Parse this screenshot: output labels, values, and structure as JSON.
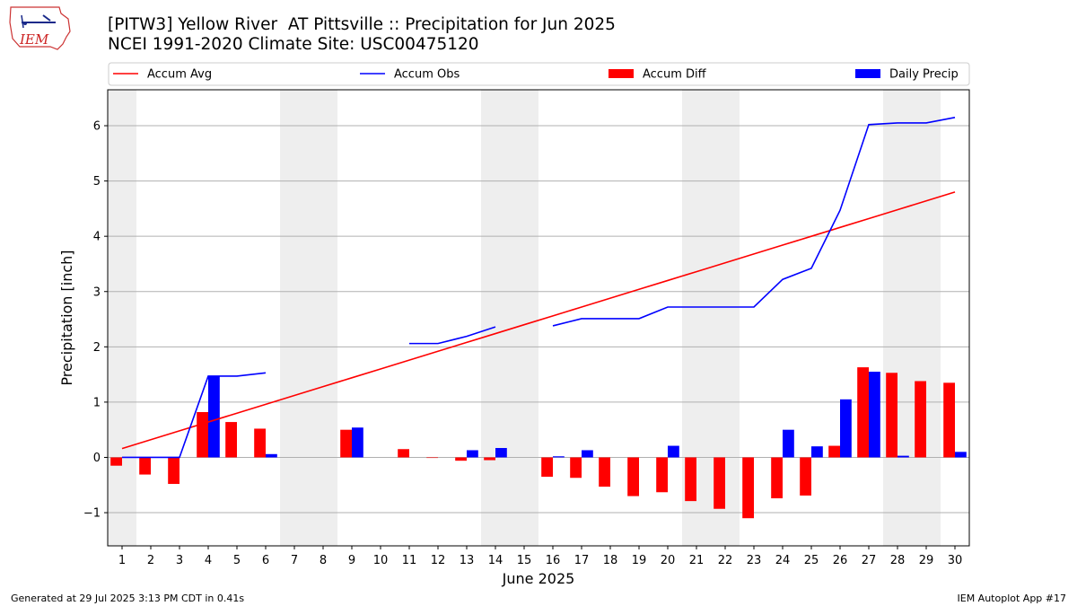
{
  "header": {
    "title_line1": "[PITW3] Yellow River  AT Pittsville :: Precipitation for Jun 2025",
    "title_line2": "NCEI 1991-2020 Climate Site: USC00475120",
    "logo_text": "IEM"
  },
  "footer": {
    "left": "Generated at 29 Jul 2025 3:13 PM CDT in 0.41s",
    "right": "IEM Autoplot App #17"
  },
  "colors": {
    "accum_avg": "#ff0000",
    "accum_obs": "#0000ff",
    "accum_diff": "#ff0000",
    "daily_precip": "#0000ff",
    "weekend_shade": "#eeeeee",
    "grid": "#b0b0b0"
  },
  "chart_data": {
    "type": "bar",
    "xlabel": "June 2025",
    "ylabel": "Precipitation [inch]",
    "xlim": [
      0.5,
      30.5
    ],
    "ylim": [
      -1.6,
      6.65
    ],
    "yticks": [
      -1,
      0,
      1,
      2,
      3,
      4,
      5,
      6
    ],
    "grid": "y",
    "legend_placement": "top",
    "days": [
      1,
      2,
      3,
      4,
      5,
      6,
      7,
      8,
      9,
      10,
      11,
      12,
      13,
      14,
      15,
      16,
      17,
      18,
      19,
      20,
      21,
      22,
      23,
      24,
      25,
      26,
      27,
      28,
      29,
      30
    ],
    "weekend_days": [
      1,
      7,
      8,
      14,
      15,
      21,
      22,
      28,
      29
    ],
    "series": [
      {
        "name": "Accum Avg",
        "kind": "line",
        "values": [
          0.16,
          0.32,
          0.48,
          0.64,
          0.8,
          0.96,
          1.12,
          1.28,
          1.44,
          1.6,
          1.76,
          1.92,
          2.08,
          2.24,
          2.4,
          2.56,
          2.72,
          2.88,
          3.04,
          3.2,
          3.36,
          3.52,
          3.68,
          3.84,
          4.0,
          4.16,
          4.32,
          4.48,
          4.64,
          4.8
        ]
      },
      {
        "name": "Accum Obs",
        "kind": "line",
        "values": [
          0.0,
          0.0,
          0.0,
          1.47,
          1.47,
          1.53,
          null,
          null,
          null,
          null,
          2.06,
          2.06,
          2.19,
          2.36,
          null,
          2.38,
          2.51,
          2.51,
          2.51,
          2.72,
          2.72,
          2.72,
          2.72,
          3.22,
          3.42,
          4.47,
          6.02,
          6.05,
          6.05,
          6.15
        ]
      },
      {
        "name": "Accum Diff",
        "kind": "bar",
        "values": [
          -0.15,
          -0.31,
          -0.48,
          0.82,
          0.64,
          0.52,
          null,
          null,
          0.5,
          null,
          0.15,
          -0.01,
          -0.06,
          -0.05,
          null,
          -0.35,
          -0.37,
          -0.53,
          -0.7,
          -0.63,
          -0.79,
          -0.93,
          -1.1,
          -0.74,
          -0.69,
          0.21,
          1.63,
          1.53,
          1.38,
          1.35
        ]
      },
      {
        "name": "Daily Precip",
        "kind": "bar",
        "values": [
          0.0,
          0.0,
          0.0,
          1.47,
          0.0,
          0.06,
          null,
          null,
          0.54,
          null,
          0.0,
          0.0,
          0.13,
          0.17,
          null,
          0.02,
          0.13,
          0.0,
          0.0,
          0.21,
          0.0,
          0.0,
          0.0,
          0.5,
          0.2,
          1.05,
          1.55,
          0.03,
          0.0,
          0.1
        ]
      }
    ]
  }
}
